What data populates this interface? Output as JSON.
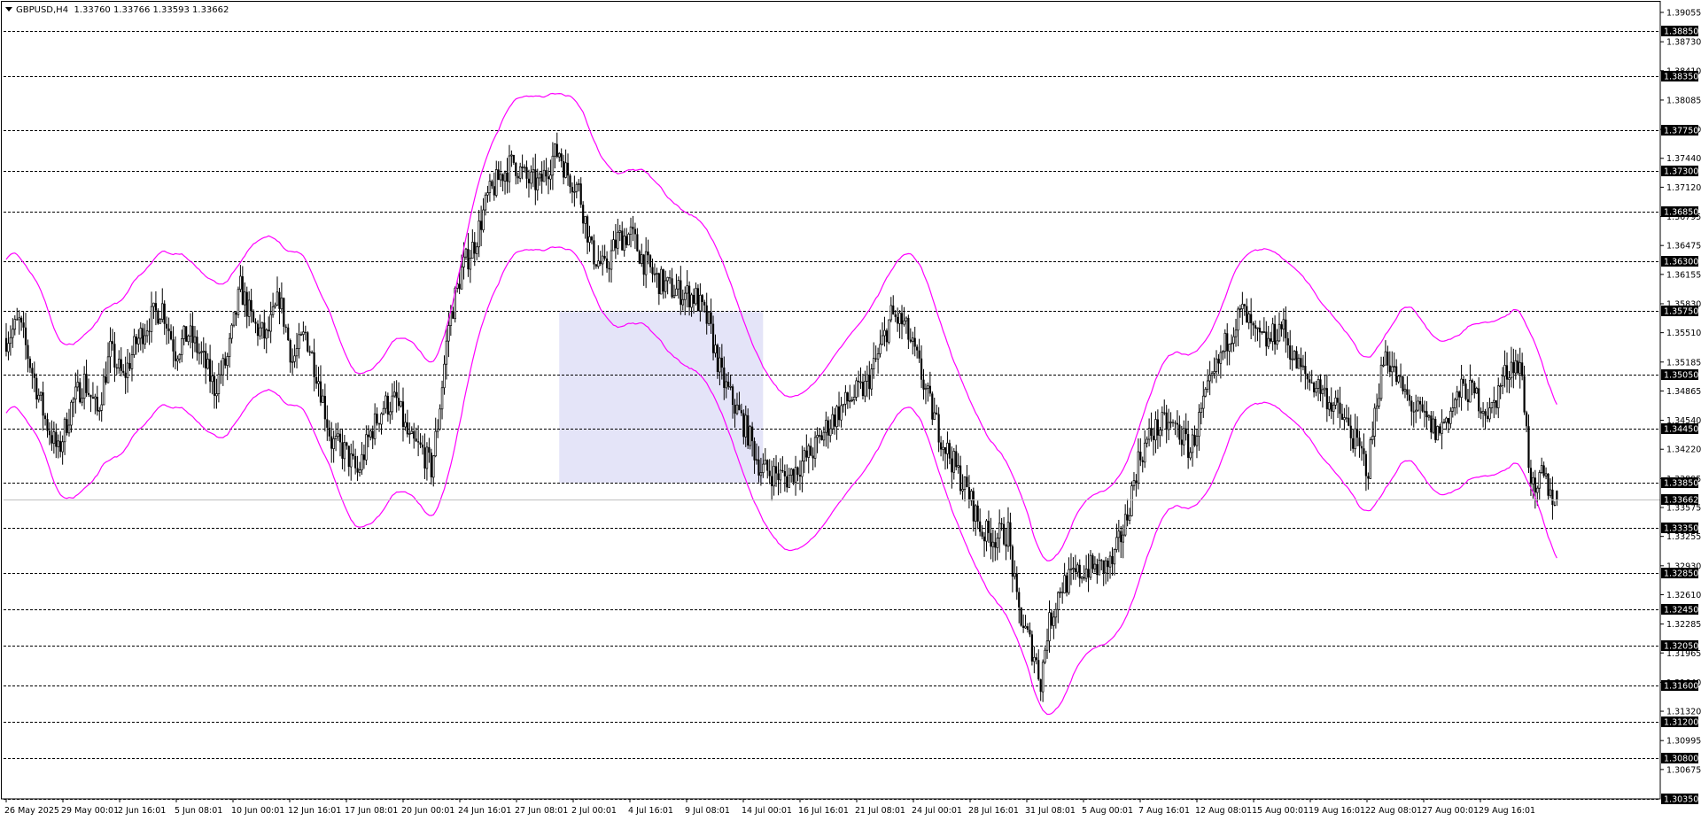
{
  "header": {
    "symbol": "GBPUSD,H4",
    "ohlc": "1.33760 1.33766 1.33593 1.33662"
  },
  "colors": {
    "background": "#ffffff",
    "candle": "#000000",
    "envelope": "#ff00ff",
    "zone_fill": "#e4e4f8",
    "level_line": "#000000",
    "badge_bg": "#000000",
    "badge_text": "#ffffff"
  },
  "chart_data": {
    "type": "candlestick",
    "symbol": "GBPUSD",
    "timeframe": "H4",
    "ylim": [
      1.3035,
      1.39055
    ],
    "current_price": 1.33662,
    "y_ticks": [
      "1.39055",
      "1.38730",
      "1.38410",
      "1.38085",
      "1.37760",
      "1.37440",
      "1.37120",
      "1.36795",
      "1.36475",
      "1.36155",
      "1.35830",
      "1.35510",
      "1.35185",
      "1.34865",
      "1.34540",
      "1.34220",
      "1.33895",
      "1.33575",
      "1.33255",
      "1.32930",
      "1.32610",
      "1.32285",
      "1.31965",
      "1.31640",
      "1.31320",
      "1.30995",
      "1.30675"
    ],
    "levels": [
      "1.38850",
      "1.38350",
      "1.37750",
      "1.37300",
      "1.36850",
      "1.36300",
      "1.35750",
      "1.35050",
      "1.34450",
      "1.33850",
      "1.33350",
      "1.32850",
      "1.32450",
      "1.32050",
      "1.31600",
      "1.31200",
      "1.30800",
      "1.30350"
    ],
    "x_ticks": [
      "26 May 2025",
      "29 May 00:01",
      "2 Jun 16:01",
      "5 Jun 08:01",
      "10 Jun 00:01",
      "12 Jun 16:01",
      "17 Jun 08:01",
      "20 Jun 00:01",
      "24 Jun 16:01",
      "27 Jun 08:01",
      "2 Jul 00:01",
      "4 Jul 16:01",
      "9 Jul 08:01",
      "14 Jul 00:01",
      "16 Jul 16:01",
      "21 Jul 08:01",
      "24 Jul 00:01",
      "28 Jul 16:01",
      "31 Jul 08:01",
      "5 Aug 00:01",
      "7 Aug 16:01",
      "12 Aug 08:01",
      "15 Aug 00:01",
      "19 Aug 16:01",
      "22 Aug 08:01",
      "27 Aug 00:01",
      "29 Aug 16:01"
    ],
    "zone": {
      "from_bar": 255,
      "to_bar": 349,
      "price_low": 1.3385,
      "price_high": 1.3575
    },
    "close_path": [
      [
        0,
        1.3545
      ],
      [
        6,
        1.3562
      ],
      [
        12,
        1.3508
      ],
      [
        18,
        1.3455
      ],
      [
        24,
        1.3418
      ],
      [
        30,
        1.347
      ],
      [
        36,
        1.3498
      ],
      [
        42,
        1.3462
      ],
      [
        48,
        1.353
      ],
      [
        54,
        1.35
      ],
      [
        60,
        1.354
      ],
      [
        66,
        1.3565
      ],
      [
        72,
        1.358
      ],
      [
        78,
        1.353
      ],
      [
        84,
        1.355
      ],
      [
        90,
        1.3525
      ],
      [
        96,
        1.349
      ],
      [
        102,
        1.3522
      ],
      [
        108,
        1.36
      ],
      [
        114,
        1.356
      ],
      [
        120,
        1.3545
      ],
      [
        126,
        1.359
      ],
      [
        132,
        1.352
      ],
      [
        138,
        1.355
      ],
      [
        144,
        1.35
      ],
      [
        150,
        1.343
      ],
      [
        156,
        1.342
      ],
      [
        162,
        1.3395
      ],
      [
        168,
        1.344
      ],
      [
        174,
        1.347
      ],
      [
        180,
        1.3475
      ],
      [
        186,
        1.343
      ],
      [
        192,
        1.342
      ],
      [
        196,
        1.34
      ],
      [
        199,
        1.345
      ],
      [
        204,
        1.356
      ],
      [
        210,
        1.362
      ],
      [
        216,
        1.365
      ],
      [
        222,
        1.37
      ],
      [
        228,
        1.3725
      ],
      [
        234,
        1.374
      ],
      [
        240,
        1.372
      ],
      [
        246,
        1.3715
      ],
      [
        252,
        1.3745
      ],
      [
        255,
        1.3752
      ],
      [
        258,
        1.373
      ],
      [
        264,
        1.371
      ],
      [
        270,
        1.364
      ],
      [
        276,
        1.362
      ],
      [
        282,
        1.3655
      ],
      [
        288,
        1.366
      ],
      [
        294,
        1.363
      ],
      [
        300,
        1.361
      ],
      [
        306,
        1.36
      ],
      [
        312,
        1.3595
      ],
      [
        318,
        1.359
      ],
      [
        324,
        1.356
      ],
      [
        330,
        1.35
      ],
      [
        336,
        1.347
      ],
      [
        342,
        1.344
      ],
      [
        348,
        1.34
      ],
      [
        354,
        1.3395
      ],
      [
        360,
        1.339
      ],
      [
        366,
        1.3405
      ],
      [
        372,
        1.342
      ],
      [
        378,
        1.3445
      ],
      [
        384,
        1.3465
      ],
      [
        390,
        1.348
      ],
      [
        396,
        1.349
      ],
      [
        402,
        1.3525
      ],
      [
        408,
        1.357
      ],
      [
        414,
        1.356
      ],
      [
        420,
        1.352
      ],
      [
        426,
        1.347
      ],
      [
        432,
        1.343
      ],
      [
        438,
        1.34
      ],
      [
        444,
        1.337
      ],
      [
        450,
        1.333
      ],
      [
        456,
        1.3325
      ],
      [
        462,
        1.333
      ],
      [
        466,
        1.325
      ],
      [
        470,
        1.322
      ],
      [
        474,
        1.3195
      ],
      [
        477,
        1.3165
      ],
      [
        480,
        1.322
      ],
      [
        486,
        1.327
      ],
      [
        492,
        1.328
      ],
      [
        498,
        1.329
      ],
      [
        504,
        1.329
      ],
      [
        510,
        1.3295
      ],
      [
        516,
        1.334
      ],
      [
        522,
        1.341
      ],
      [
        528,
        1.344
      ],
      [
        534,
        1.345
      ],
      [
        540,
        1.3445
      ],
      [
        546,
        1.342
      ],
      [
        552,
        1.347
      ],
      [
        558,
        1.351
      ],
      [
        564,
        1.355
      ],
      [
        570,
        1.3575
      ],
      [
        576,
        1.3545
      ],
      [
        582,
        1.354
      ],
      [
        588,
        1.356
      ],
      [
        594,
        1.352
      ],
      [
        600,
        1.35
      ],
      [
        606,
        1.349
      ],
      [
        612,
        1.347
      ],
      [
        618,
        1.345
      ],
      [
        624,
        1.342
      ],
      [
        628,
        1.34
      ],
      [
        632,
        1.348
      ],
      [
        636,
        1.353
      ],
      [
        642,
        1.3495
      ],
      [
        648,
        1.347
      ],
      [
        654,
        1.3455
      ],
      [
        660,
        1.344
      ],
      [
        666,
        1.3465
      ],
      [
        672,
        1.349
      ],
      [
        678,
        1.348
      ],
      [
        684,
        1.346
      ],
      [
        690,
        1.35
      ],
      [
        695,
        1.352
      ],
      [
        699,
        1.3505
      ],
      [
        702,
        1.341
      ],
      [
        705,
        1.336
      ],
      [
        708,
        1.3395
      ],
      [
        711,
        1.338
      ],
      [
        714,
        1.3366
      ]
    ]
  }
}
